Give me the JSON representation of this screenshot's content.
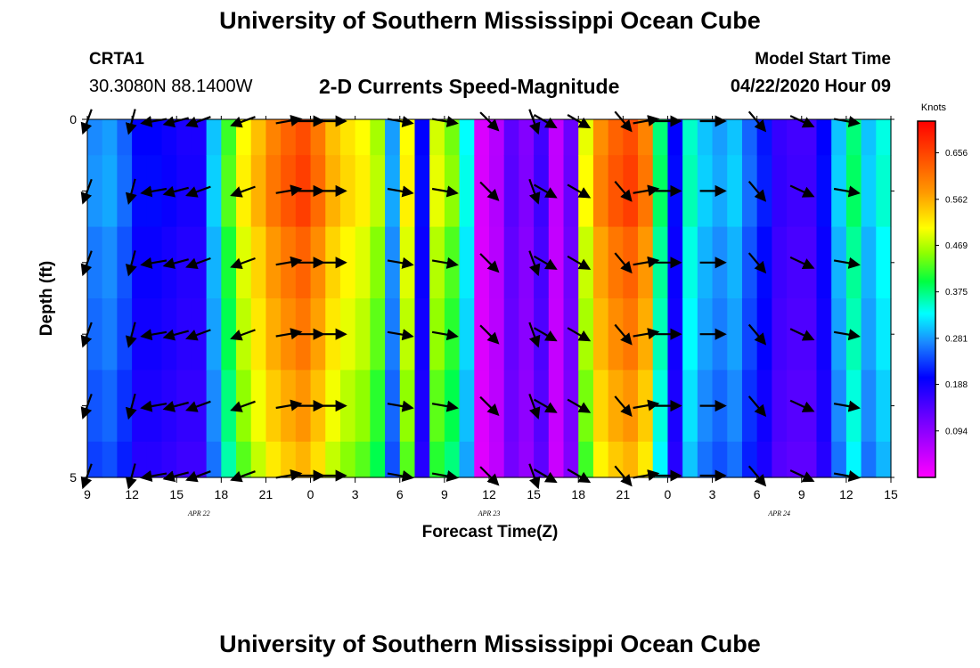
{
  "page": {
    "title": "University of Southern Mississippi Ocean Cube",
    "footer_title": "University of Southern Mississippi Ocean Cube",
    "station_id": "CRTA1",
    "station_location": "30.3080N 88.1400W",
    "plot_title": "2-D Currents Speed-Magnitude",
    "model_start_label": "Model Start Time",
    "model_start_value": "04/22/2020 Hour 09"
  },
  "chart_data": {
    "type": "heatmap",
    "title": "2-D Currents Speed-Magnitude",
    "xlabel": "Forecast Time(Z)",
    "ylabel": "Depth (ft)",
    "x_tick_labels": [
      "9",
      "12",
      "15",
      "18",
      "21",
      "0",
      "3",
      "6",
      "9",
      "12",
      "15",
      "18",
      "21",
      "0",
      "3",
      "6",
      "9",
      "12",
      "15"
    ],
    "x_hours": [
      0,
      54
    ],
    "date_labels": [
      {
        "label": "APR 22",
        "hour": 7.5
      },
      {
        "label": "APR 23",
        "hour": 27
      },
      {
        "label": "APR 24",
        "hour": 46.5
      }
    ],
    "y_tick_labels": [
      "0",
      "5"
    ],
    "ylim": [
      0,
      5
    ],
    "y_reversed": true,
    "colorbar": {
      "label": "Knots",
      "tick_labels": [
        "0.656",
        "0.562",
        "0.469",
        "0.375",
        "0.281",
        "0.188",
        "0.094"
      ],
      "tick_values": [
        0.656,
        0.562,
        0.469,
        0.375,
        0.281,
        0.188,
        0.094
      ],
      "range": [
        0.0,
        0.72
      ]
    },
    "depth_levels": [
      0.0,
      1.0,
      2.0,
      3.0,
      4.0,
      5.0
    ],
    "speed_profile_hours": [
      0,
      1,
      2,
      3,
      4,
      5,
      6,
      7,
      8,
      9,
      10,
      11,
      12,
      13,
      14,
      15,
      16,
      17,
      18,
      19,
      20,
      21,
      22,
      23,
      24,
      25,
      26,
      27,
      28,
      29,
      30,
      31,
      32,
      33,
      34,
      35,
      36,
      37,
      38,
      39,
      40,
      41,
      42,
      43,
      44,
      45,
      46,
      47,
      48,
      49,
      50,
      51,
      52,
      53
    ],
    "speed_profile_knots": [
      0.27,
      0.28,
      0.25,
      0.2,
      0.2,
      0.19,
      0.18,
      0.18,
      0.3,
      0.42,
      0.5,
      0.55,
      0.6,
      0.63,
      0.65,
      0.61,
      0.55,
      0.52,
      0.5,
      0.46,
      0.28,
      0.5,
      0.2,
      0.48,
      0.44,
      0.33,
      0.03,
      0.06,
      0.13,
      0.1,
      0.15,
      0.05,
      0.12,
      0.49,
      0.59,
      0.63,
      0.65,
      0.6,
      0.38,
      0.2,
      0.35,
      0.3,
      0.28,
      0.3,
      0.25,
      0.21,
      0.16,
      0.15,
      0.15,
      0.2,
      0.3,
      0.38,
      0.3,
      0.34
    ],
    "depth_speed_factors": [
      1.0,
      1.02,
      0.97,
      0.94,
      0.9,
      0.86
    ],
    "vector_hours": [
      0,
      3,
      4.5,
      6,
      7.5,
      10.5,
      13.5,
      15,
      16.5,
      21,
      24,
      27,
      30,
      30.75,
      33,
      36,
      37.5,
      39,
      42,
      45,
      48,
      51
    ],
    "vector_depths": [
      0.0,
      1.0,
      2.0,
      3.0,
      4.0,
      5.0
    ],
    "vector_directions_deg": [
      200,
      195,
      260,
      255,
      250,
      250,
      80,
      90,
      90,
      100,
      100,
      135,
      160,
      120,
      120,
      140,
      80,
      90,
      90,
      140,
      115,
      100
    ]
  }
}
